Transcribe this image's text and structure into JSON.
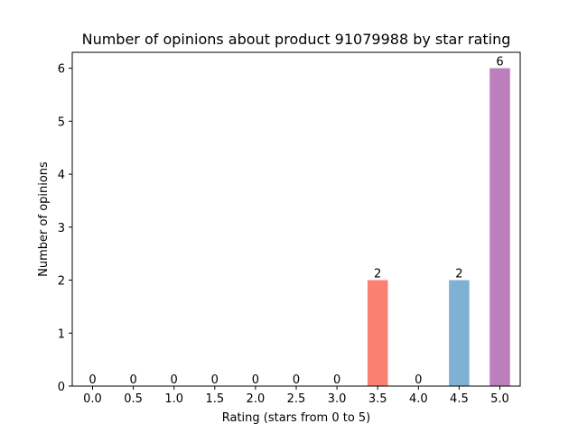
{
  "chart_data": {
    "type": "bar",
    "title": "Number of opinions about product 91079988 by star rating",
    "xlabel": "Rating (stars from 0 to 5)",
    "ylabel": "Number of opinions",
    "categories": [
      "0.0",
      "0.5",
      "1.0",
      "1.5",
      "2.0",
      "2.5",
      "3.0",
      "3.5",
      "4.0",
      "4.5",
      "5.0"
    ],
    "values": [
      0,
      0,
      0,
      0,
      0,
      0,
      0,
      2,
      0,
      2,
      6
    ],
    "data_labels": [
      "0",
      "0",
      "0",
      "0",
      "0",
      "0",
      "0",
      "2",
      "0",
      "2",
      "6"
    ],
    "bar_colors": [
      "#e24a33",
      "#348abd",
      "#988ed5",
      "#777777",
      "#fbc15e",
      "#8eba42",
      "#ffb5b8",
      "#fa8072",
      "#e24a33",
      "#7fb1d3",
      "#bc7fbc"
    ],
    "ylim": [
      0,
      6.3
    ],
    "yticks": [
      0,
      1,
      2,
      3,
      4,
      5,
      6
    ],
    "ytick_labels": [
      "0",
      "1",
      "2",
      "3",
      "4",
      "5",
      "6"
    ],
    "grid": false,
    "legend": "none"
  }
}
